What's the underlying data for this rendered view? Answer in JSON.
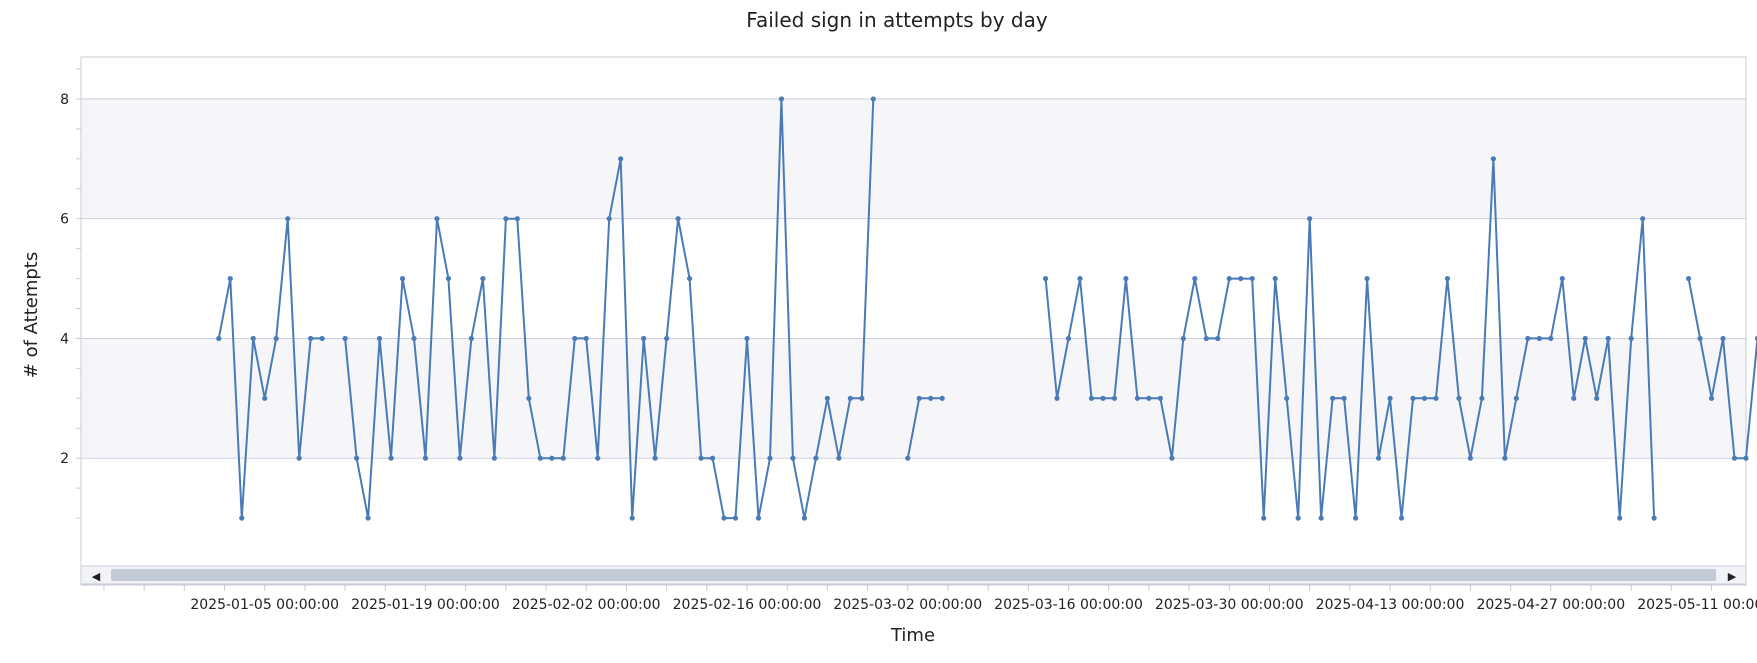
{
  "chart_data": {
    "type": "line",
    "title": "Failed sign in attempts by day",
    "xlabel": "Time",
    "ylabel": "# of Attempts",
    "x_start": "2025-01-01",
    "x_range": [
      "2024-12-20",
      "2025-05-14"
    ],
    "ylim": [
      0.2,
      8.7
    ],
    "y_ticks": [
      2,
      4,
      6,
      8
    ],
    "x_ticks": [
      "2025-01-05 00:00:00",
      "2025-01-19 00:00:00",
      "2025-02-02 00:00:00",
      "2025-02-16 00:00:00",
      "2025-03-02 00:00:00",
      "2025-03-16 00:00:00",
      "2025-03-30 00:00:00",
      "2025-04-13 00:00:00",
      "2025-04-27 00:00:00",
      "2025-05-11 00:00:00"
    ],
    "grid": true,
    "legend": "none",
    "series": [
      {
        "color": "#4a7bb7",
        "values": [
          4,
          5,
          1,
          4,
          3,
          4,
          6,
          2,
          4,
          4,
          null,
          4,
          2,
          1,
          4,
          2,
          5,
          4,
          2,
          6,
          5,
          2,
          4,
          5,
          2,
          6,
          6,
          3,
          2,
          2,
          2,
          4,
          4,
          2,
          6,
          7,
          1,
          4,
          2,
          4,
          6,
          5,
          2,
          2,
          1,
          1,
          4,
          1,
          2,
          8,
          2,
          1,
          2,
          3,
          2,
          3,
          3,
          8,
          null,
          null,
          2,
          3,
          3,
          3,
          null,
          null,
          null,
          null,
          null,
          null,
          null,
          null,
          5,
          3,
          4,
          5,
          3,
          3,
          3,
          5,
          3,
          3,
          3,
          2,
          4,
          5,
          4,
          4,
          5,
          5,
          5,
          1,
          5,
          3,
          1,
          6,
          1,
          3,
          3,
          1,
          5,
          2,
          3,
          1,
          3,
          3,
          3,
          5,
          3,
          2,
          3,
          7,
          2,
          3,
          4,
          4,
          4,
          5,
          3,
          4,
          3,
          4,
          1,
          4,
          6,
          1,
          null,
          null,
          5,
          4,
          3,
          4,
          2,
          2,
          4,
          4
        ]
      }
    ]
  },
  "scrollbar": {
    "left_arrow": "◀",
    "right_arrow": "▶"
  }
}
